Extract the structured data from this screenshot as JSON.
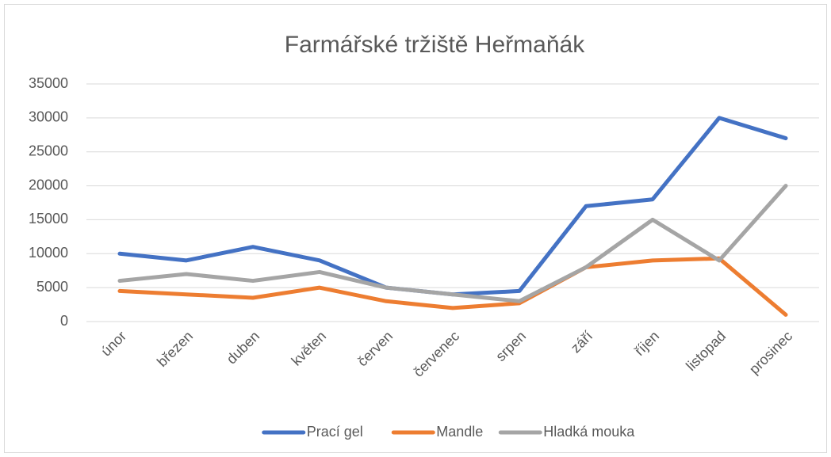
{
  "chart_data": {
    "type": "line",
    "title": "Farmářské tržiště Heřmaňák",
    "categories": [
      "únor",
      "březen",
      "duben",
      "květen",
      "červen",
      "červenec",
      "srpen",
      "září",
      "říjen",
      "listopad",
      "prosinec"
    ],
    "series": [
      {
        "name": "Prací gel",
        "color": "#4472c4",
        "values": [
          10000,
          9000,
          11000,
          9000,
          5000,
          4000,
          4500,
          17000,
          18000,
          30000,
          27000
        ]
      },
      {
        "name": "Mandle",
        "color": "#ed7d31",
        "values": [
          4500,
          4000,
          3500,
          5000,
          3000,
          2000,
          2700,
          8000,
          9000,
          9300,
          1000
        ]
      },
      {
        "name": "Hladká mouka",
        "color": "#a5a5a5",
        "values": [
          6000,
          7000,
          6000,
          7300,
          5000,
          4000,
          3000,
          8000,
          15000,
          9000,
          20000
        ]
      }
    ],
    "ylim": [
      0,
      35000
    ],
    "yticks": [
      0,
      5000,
      10000,
      15000,
      20000,
      25000,
      30000,
      35000
    ],
    "grid": true,
    "legend": "bottom"
  }
}
